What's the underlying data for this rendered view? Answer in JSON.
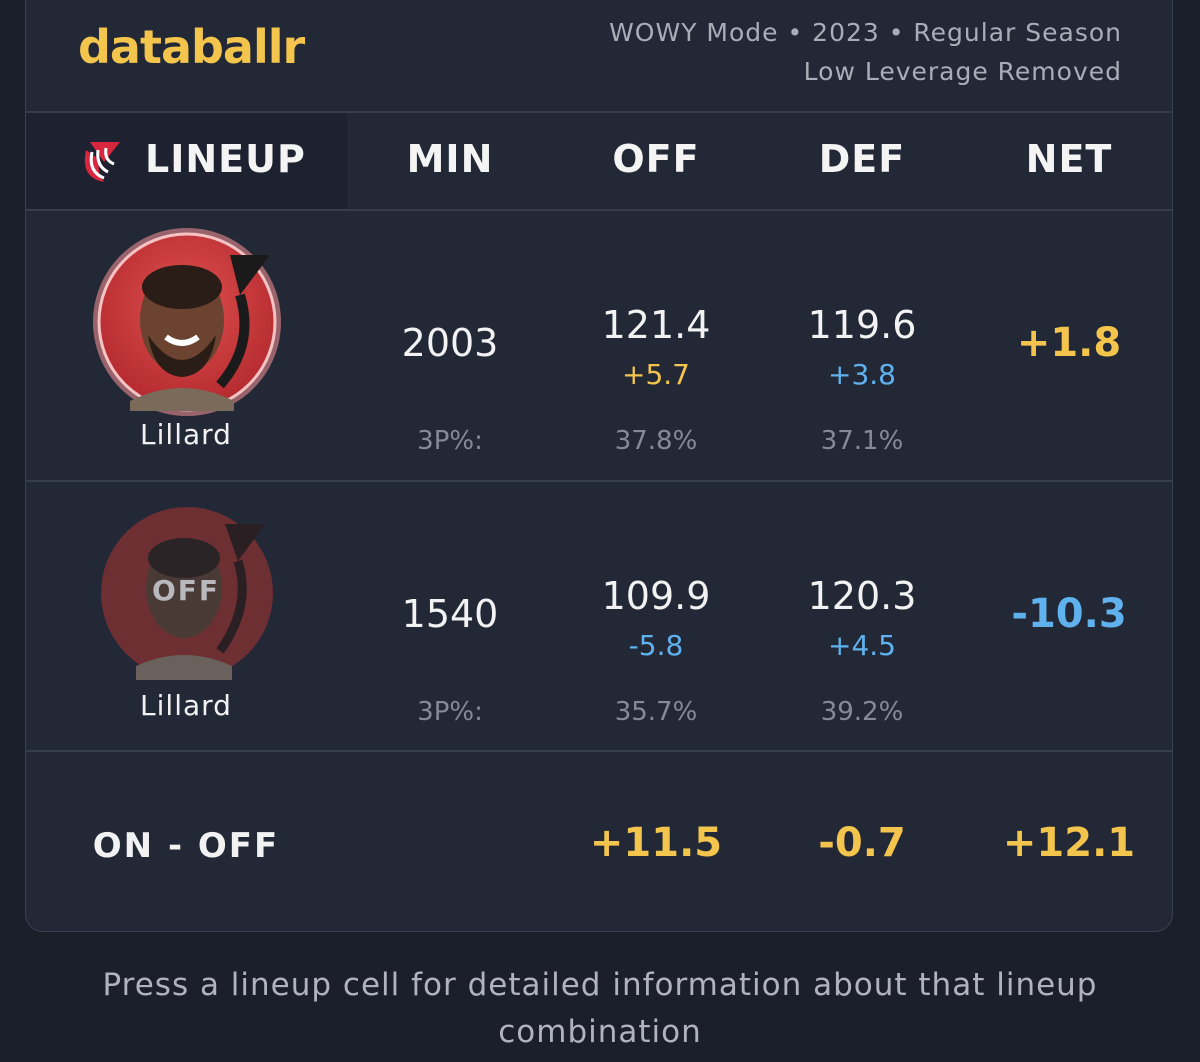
{
  "header": {
    "logo": "databallr",
    "subtitle_line1": "WOWY Mode • 2023 • Regular Season",
    "subtitle_line2": "Low Leverage Removed"
  },
  "table": {
    "columns": [
      "LINEUP",
      "MIN",
      "OFF",
      "DEF",
      "NET"
    ],
    "rows": [
      {
        "player": "Lillard",
        "min": "2003",
        "off": "121.4",
        "off_diff": "+5.7",
        "def": "119.6",
        "def_diff": "+3.8",
        "net": "+1.8",
        "three_label": "3P%:",
        "off_3p": "37.8%",
        "def_3p": "37.1%"
      },
      {
        "player": "Lillard",
        "status": "OFF",
        "min": "1540",
        "off": "109.9",
        "off_diff": "-5.8",
        "def": "120.3",
        "def_diff": "+4.5",
        "net": "-10.3",
        "three_label": "3P%:",
        "off_3p": "35.7%",
        "def_3p": "39.2%"
      }
    ],
    "summary": {
      "label": "ON - OFF",
      "off": "+11.5",
      "def": "-0.7",
      "net": "+12.1"
    }
  },
  "footer": "Press a lineup cell for detailed information about that lineup combination"
}
